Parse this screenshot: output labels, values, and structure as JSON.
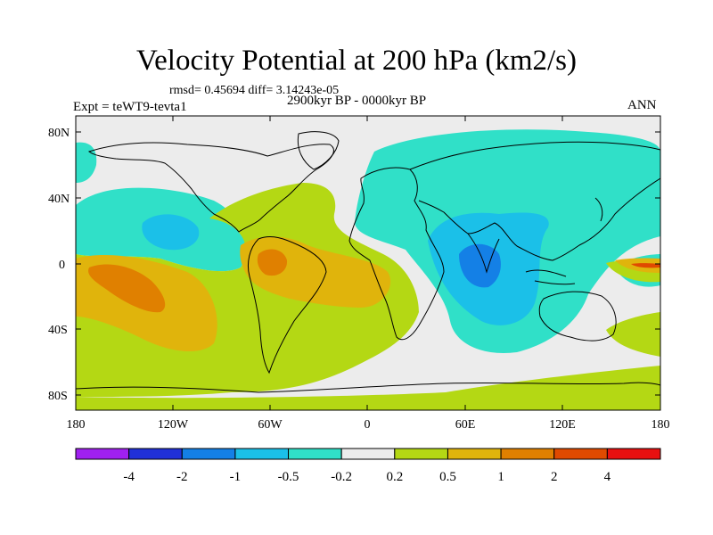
{
  "map": {
    "title": "Velocity Potential at 200 hPa (km2/s)",
    "stats": "rmsd= 0.45694  diff= 3.14243e-05",
    "period": "2900kyr BP - 0000kyr BP",
    "experiment": "Expt = teWT9-tevta1",
    "season": "ANN",
    "lat_labels": [
      "80N",
      "40N",
      "0",
      "40S",
      "80S"
    ],
    "lon_labels": [
      "180",
      "120W",
      "60W",
      "0",
      "60E",
      "120E",
      "180"
    ],
    "land_outline_color": "#000000",
    "ocean_neutral_color": "#ececec"
  },
  "colorbar": {
    "colors": [
      "#a020f0",
      "#2030d8",
      "#1480e6",
      "#1bc0e8",
      "#30e0c8",
      "#ececec",
      "#b4d814",
      "#e0b40c",
      "#e08000",
      "#e04a00",
      "#e81010"
    ],
    "labels": [
      "-4",
      "-2",
      "-1",
      "-0.5",
      "-0.2",
      "0.2",
      "0.5",
      "1",
      "2",
      "4"
    ]
  }
}
